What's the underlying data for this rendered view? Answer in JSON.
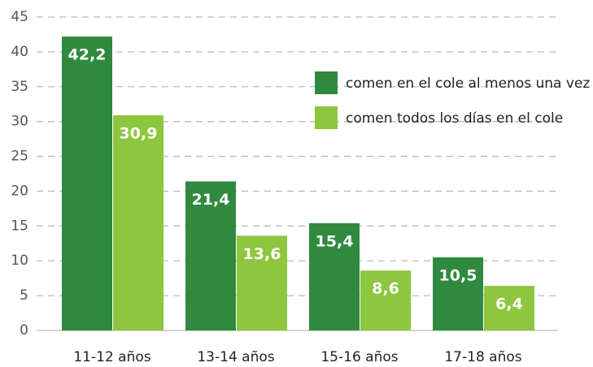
{
  "chart_data": {
    "type": "bar",
    "categories": [
      "11-12 años",
      "13-14 años",
      "15-16 años",
      "17-18 años"
    ],
    "series": [
      {
        "name": "comen en el cole al menos una vez",
        "color": "#2f8a3f",
        "values": [
          42.2,
          21.4,
          15.4,
          10.5
        ],
        "value_labels": [
          "42,2",
          "21,4",
          "15,4",
          "10,5"
        ]
      },
      {
        "name": "comen todos los días en el cole",
        "color": "#8dc63f",
        "values": [
          30.9,
          13.6,
          8.6,
          6.4
        ],
        "value_labels": [
          "30,9",
          "13,6",
          "8,6",
          "6,4"
        ]
      }
    ],
    "ylim": [
      0,
      45
    ],
    "yticks": [
      0,
      5,
      10,
      15,
      20,
      25,
      30,
      35,
      40,
      45
    ],
    "grid": true,
    "legend": "upper right"
  }
}
